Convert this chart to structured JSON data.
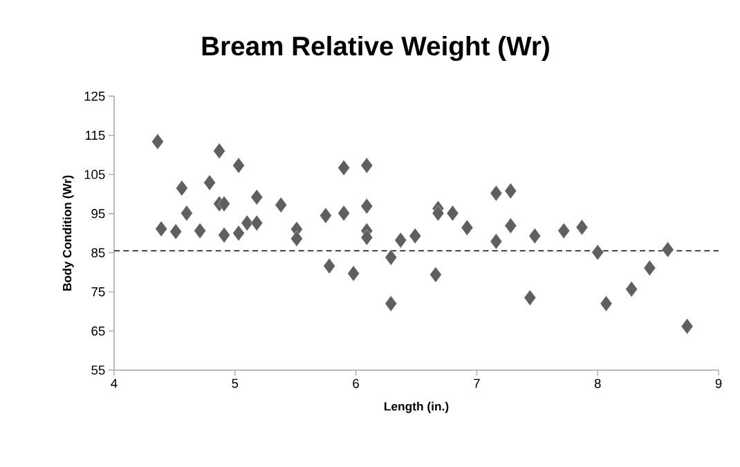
{
  "chart_data": {
    "type": "scatter",
    "title": "Bream Relative Weight (Wr)",
    "xlabel": "Length (in.)",
    "ylabel": "Body Condition (Wr)",
    "xlim": [
      4,
      9
    ],
    "xticks": [
      4,
      5,
      6,
      7,
      8,
      9
    ],
    "ylim": [
      55,
      125
    ],
    "yticks": [
      55,
      65,
      75,
      85,
      95,
      105,
      115,
      125
    ],
    "marker": "diamond",
    "series": [
      {
        "color": "#5f5f5f",
        "x": [
          4.36,
          4.87,
          5.03,
          4.56,
          4.79,
          4.87,
          4.91,
          5.18,
          5.38,
          4.6,
          4.39,
          4.51,
          4.71,
          4.91,
          5.03,
          5.1,
          5.18,
          5.51,
          5.51,
          5.75,
          5.9,
          5.9,
          6.09,
          6.09,
          6.09,
          6.09,
          5.78,
          5.98,
          6.29,
          6.29,
          6.37,
          6.49,
          6.68,
          6.68,
          6.8,
          6.92,
          6.66,
          7.16,
          7.16,
          7.28,
          7.28,
          7.48,
          7.44,
          7.72,
          7.87,
          8.0,
          8.07,
          8.28,
          8.43,
          8.58,
          8.74
        ],
        "values": [
          113.4,
          111.0,
          107.3,
          101.5,
          102.9,
          97.5,
          97.5,
          99.2,
          97.2,
          95.1,
          91.1,
          90.4,
          90.6,
          89.5,
          90.0,
          92.6,
          92.6,
          91.0,
          88.6,
          94.5,
          106.7,
          95.1,
          107.3,
          96.9,
          90.6,
          88.9,
          81.6,
          79.7,
          83.8,
          72.0,
          88.2,
          89.3,
          96.3,
          95.1,
          95.1,
          91.4,
          79.4,
          100.2,
          87.9,
          91.9,
          100.8,
          89.3,
          73.5,
          90.6,
          91.5,
          85.1,
          72.0,
          75.7,
          81.1,
          85.8,
          66.2
        ]
      }
    ],
    "ref_lines": [
      {
        "axis": "y",
        "value": 85.5,
        "color": "#000000",
        "line_style": "dashed"
      }
    ]
  }
}
